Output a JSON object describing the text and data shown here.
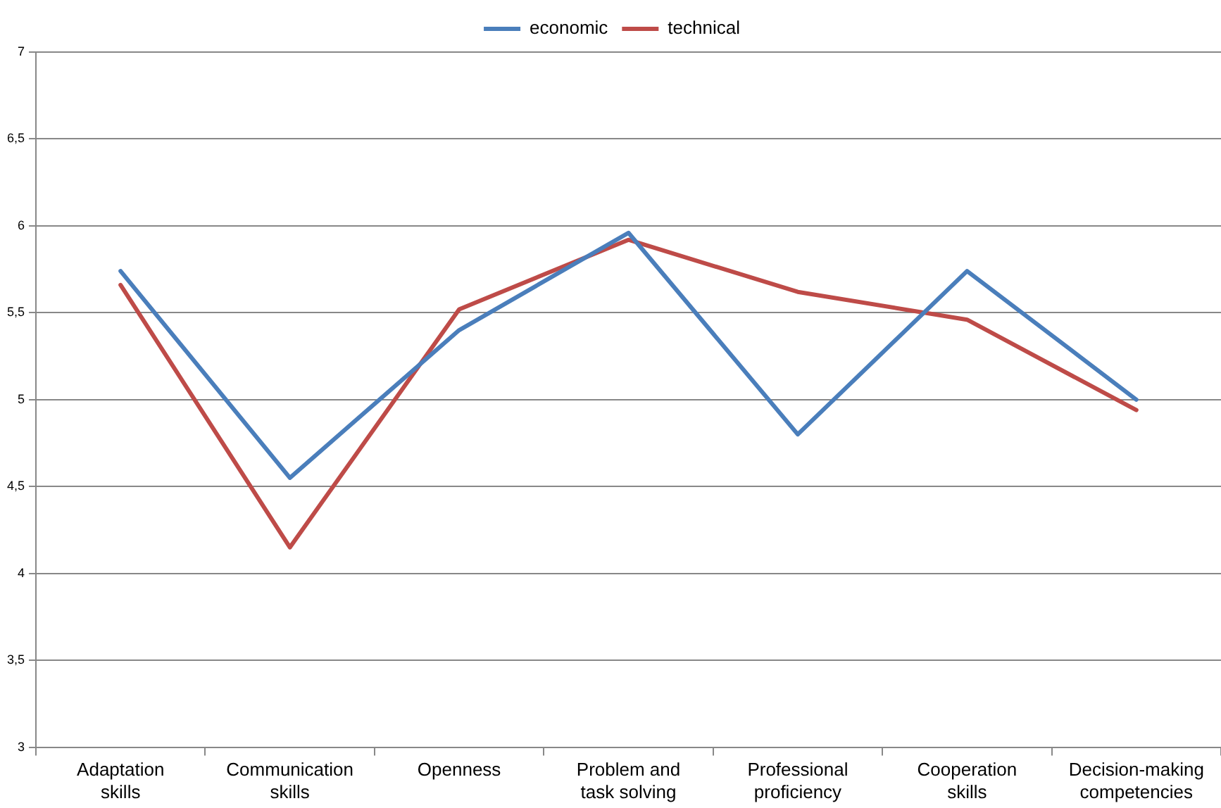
{
  "chart_data": {
    "type": "line",
    "categories": [
      "Adaptation skills",
      "Communication skills",
      "Openness",
      "Problem and task solving",
      "Professional proficiency",
      "Cooperation skills",
      "Decision-making competencies"
    ],
    "series": [
      {
        "name": "economic",
        "color": "#4a7ebb",
        "values": [
          5.74,
          4.55,
          5.4,
          5.96,
          4.8,
          5.74,
          5.0
        ]
      },
      {
        "name": "technical",
        "color": "#be4b48",
        "values": [
          5.66,
          4.15,
          5.52,
          5.92,
          5.62,
          5.46,
          4.94
        ]
      }
    ],
    "ylim": [
      3,
      7
    ],
    "yticks": [
      3,
      {
        "value": 3.5,
        "label": "3,5"
      },
      4,
      {
        "value": 4.5,
        "label": "4,5"
      },
      5,
      {
        "value": 5.5,
        "label": "5,5"
      },
      6,
      {
        "value": 6.5,
        "label": "6,5"
      },
      7
    ],
    "grid": "y",
    "legend": "top",
    "marker": "none",
    "line_style": "solid"
  }
}
